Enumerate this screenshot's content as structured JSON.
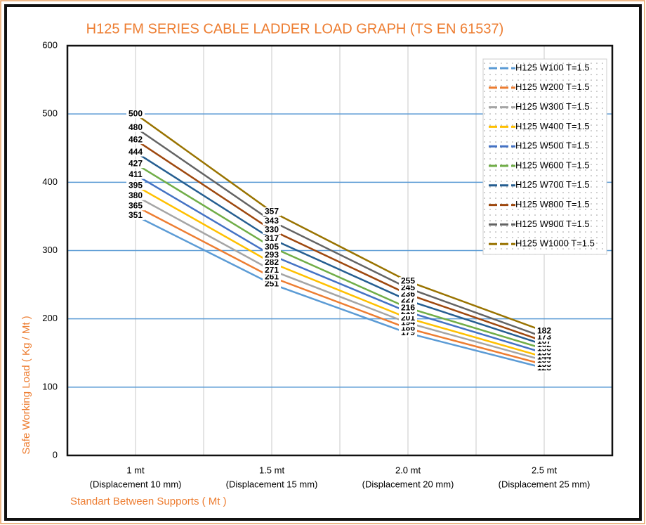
{
  "chart_data": {
    "type": "line",
    "title": "H125 FM SERIES CABLE LADDER LOAD GRAPH (TS EN 61537)",
    "x_label": "Standart Between Supports ( Mt )",
    "y_label": "Safe Working Load ( Kg / Mt )",
    "categories": [
      "1 mt",
      "1.5 mt",
      "2.0 mt",
      "2.5 mt"
    ],
    "category_sublabels": [
      "(Displacement 10 mm)",
      "(Displacement 15 mm)",
      "(Displacement 20 mm)",
      "(Displacement 25 mm)"
    ],
    "ylim": [
      0,
      600
    ],
    "yticks": [
      0,
      100,
      200,
      300,
      400,
      500,
      600
    ],
    "grid": true,
    "legend": "upper right",
    "series": [
      {
        "name": "H125 W100 T=1.5",
        "color": "#5b9bd5",
        "values": [
          351,
          251,
          179,
          128
        ]
      },
      {
        "name": "H125 W200 T=1.5",
        "color": "#ed7d31",
        "values": [
          365,
          261,
          186,
          133
        ]
      },
      {
        "name": "H125 W300 T=1.5",
        "color": "#a5a5a5",
        "values": [
          380,
          271,
          194,
          139
        ]
      },
      {
        "name": "H125 W400 T=1.5",
        "color": "#ffc000",
        "values": [
          395,
          282,
          201,
          144
        ]
      },
      {
        "name": "H125 W500 T=1.5",
        "color": "#4472c4",
        "values": [
          411,
          293,
          210,
          150
        ]
      },
      {
        "name": "H125 W600 T=1.5",
        "color": "#70ad47",
        "values": [
          427,
          305,
          216,
          156
        ]
      },
      {
        "name": "H125 W700 T=1.5",
        "color": "#255e91",
        "values": [
          444,
          317,
          227,
          162
        ]
      },
      {
        "name": "H125 W800 T=1.5",
        "color": "#9e480e",
        "values": [
          462,
          330,
          236,
          167
        ]
      },
      {
        "name": "H125 W900 T=1.5",
        "color": "#636363",
        "values": [
          480,
          343,
          245,
          173
        ]
      },
      {
        "name": "H125 W1000 T=1.5",
        "color": "#997300",
        "values": [
          500,
          357,
          255,
          182
        ]
      }
    ]
  }
}
